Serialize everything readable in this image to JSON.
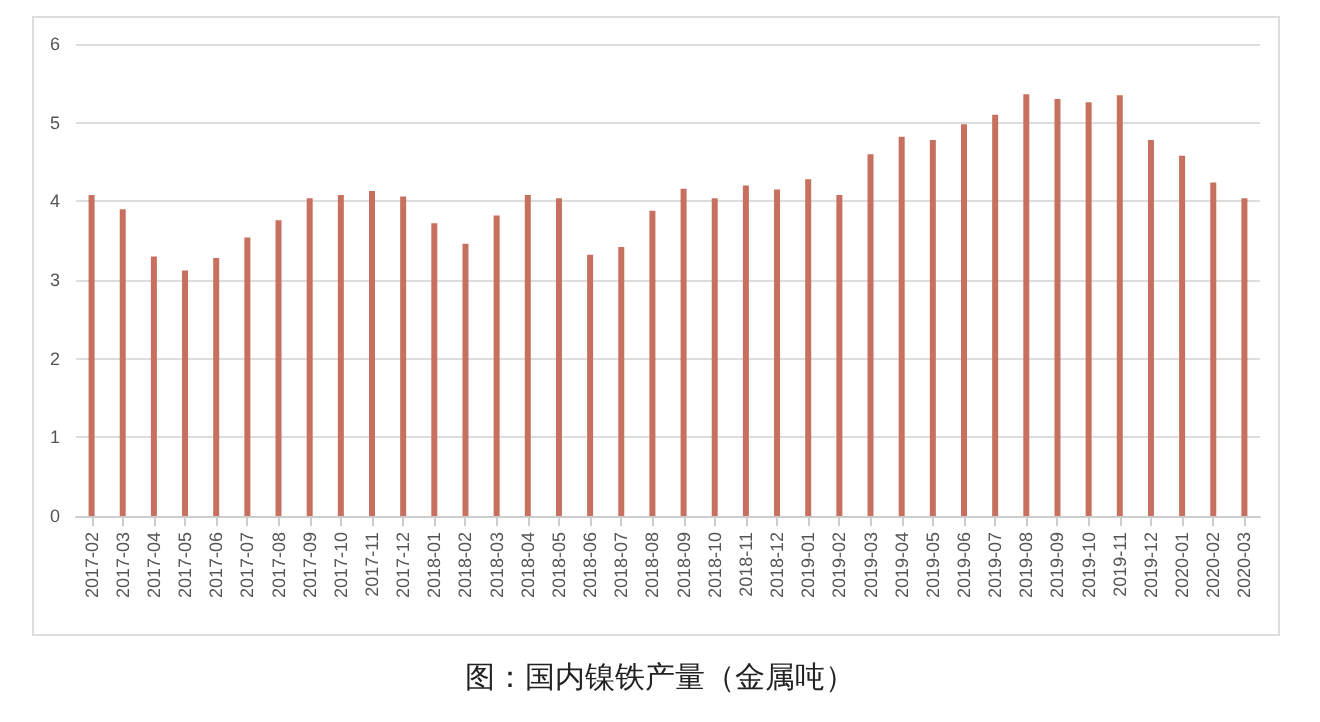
{
  "chart_data": {
    "type": "bar",
    "title": "图：国内镍铁产量（金属吨）",
    "categories": [
      "2017-02",
      "2017-03",
      "2017-04",
      "2017-05",
      "2017-06",
      "2017-07",
      "2017-08",
      "2017-09",
      "2017-10",
      "2017-11",
      "2017-12",
      "2018-01",
      "2018-02",
      "2018-03",
      "2018-04",
      "2018-05",
      "2018-06",
      "2018-07",
      "2018-08",
      "2018-09",
      "2018-10",
      "2018-11",
      "2018-12",
      "2019-01",
      "2019-02",
      "2019-03",
      "2019-04",
      "2019-05",
      "2019-06",
      "2019-07",
      "2019-08",
      "2019-09",
      "2019-10",
      "2019-11",
      "2019-12",
      "2020-01",
      "2020-02",
      "2020-03"
    ],
    "values": [
      4.08,
      3.9,
      3.3,
      3.12,
      3.28,
      3.54,
      3.76,
      4.04,
      4.08,
      4.13,
      4.06,
      3.72,
      3.46,
      3.82,
      4.08,
      4.04,
      3.32,
      3.42,
      3.88,
      4.16,
      4.04,
      4.2,
      4.15,
      4.28,
      4.08,
      4.6,
      4.82,
      4.78,
      4.98,
      5.1,
      5.36,
      5.3,
      5.26,
      5.35,
      4.78,
      4.58,
      4.24,
      4.04
    ],
    "color": "#c8705f",
    "ylim": [
      0,
      6
    ],
    "yticks": [
      0,
      1,
      2,
      3,
      4,
      5,
      6
    ],
    "grid": "y"
  }
}
